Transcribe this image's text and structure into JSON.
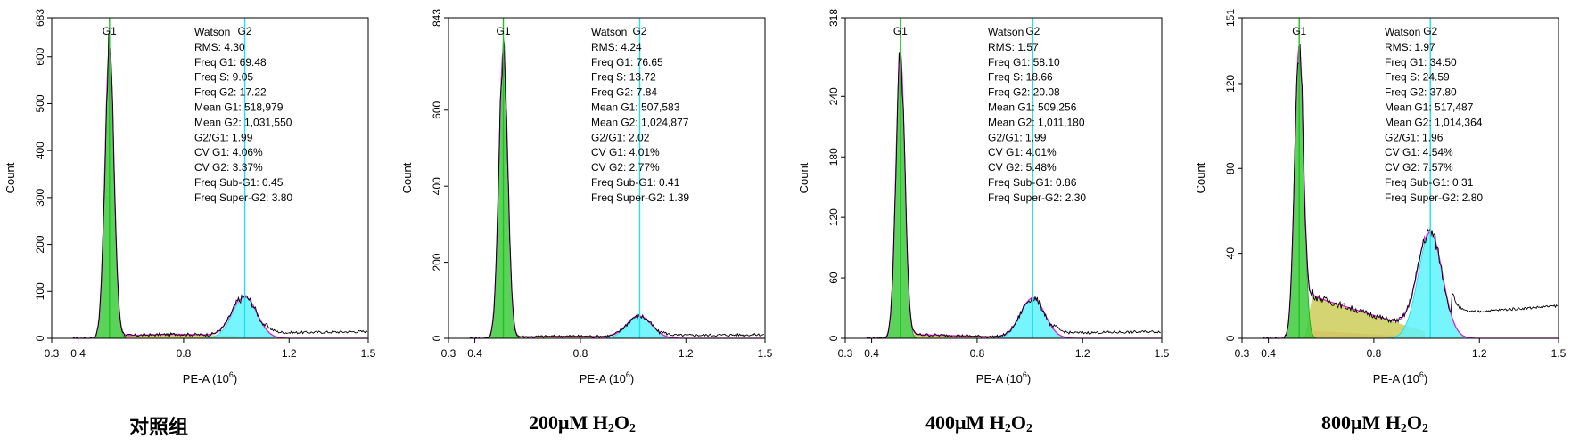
{
  "colors": {
    "g1_fill": "#3ccd3c",
    "g1_line": "#26a626",
    "g2_fill": "#5ff3fc",
    "g2_line": "#2ed6e8",
    "s_fill": "#cccc59",
    "sub_fill": "#f08a8a",
    "model_line": "#e21ee2",
    "data_line": "#000000"
  },
  "shared": {
    "xlabel_main": "PE-A (10",
    "xlabel_exp": "6",
    "xlabel_close": ")",
    "ylabel": "Count",
    "xticks": [
      "0.3",
      "0.4",
      "0.8",
      "1.2",
      "1.5"
    ],
    "peak_label_g1": "G1",
    "peak_label_g2": "G2",
    "stats_title": "Watson"
  },
  "chart_data": [
    {
      "type": "area",
      "caption": "对照组",
      "ylim": [
        0,
        683
      ],
      "yticks": [
        0,
        100,
        200,
        300,
        400,
        500,
        600,
        683
      ],
      "xlim": [
        0.3,
        1.5
      ],
      "g1_mean": 0.519,
      "g2_mean": 1.032,
      "g1_peak": 620,
      "g2_peak": 88,
      "stats": [
        "RMS: 4.30",
        "Freq G1: 69.48",
        "Freq S: 9.05",
        "Freq G2: 17.22",
        "Mean G1: 518,979",
        "Mean G2: 1,031,550",
        "G2/G1: 1.99",
        "CV G1: 4.06%",
        "CV G2: 3.37%",
        "Freq Sub-G1: 0.45",
        "Freq Super-G2: 3.80"
      ]
    },
    {
      "type": "area",
      "caption": "200μM H₂O₂",
      "caption_main": "200μM H",
      "caption_sub1": "2",
      "caption_mid": "O",
      "caption_sub2": "2",
      "ylim": [
        0,
        843
      ],
      "yticks": [
        0,
        200,
        400,
        600,
        843
      ],
      "xlim": [
        0.3,
        1.5
      ],
      "g1_mean": 0.508,
      "g2_mean": 1.025,
      "g1_peak": 760,
      "g2_peak": 58,
      "stats": [
        "RMS: 4.24",
        "Freq G1: 76.65",
        "Freq S: 13.72",
        "Freq G2: 7.84",
        "Mean G1: 507,583",
        "Mean G2: 1,024,877",
        "G2/G1: 2.02",
        "CV G1: 4.01%",
        "CV G2: 2.77%",
        "Freq Sub-G1: 0.41",
        "Freq Super-G2: 1.39"
      ]
    },
    {
      "type": "area",
      "caption": "400μM H₂O₂",
      "caption_main": "400μM H",
      "caption_sub1": "2",
      "caption_mid": "O",
      "caption_sub2": "2",
      "ylim": [
        0,
        318
      ],
      "yticks": [
        0,
        60,
        120,
        180,
        240,
        318
      ],
      "xlim": [
        0.3,
        1.5
      ],
      "g1_mean": 0.509,
      "g2_mean": 1.011,
      "g1_peak": 282,
      "g2_peak": 40,
      "stats": [
        "RMS: 1.57",
        "Freq G1: 58.10",
        "Freq S: 18.66",
        "Freq G2: 20.08",
        "Mean G1: 509,256",
        "Mean G2: 1,011,180",
        "G2/G1: 1.99",
        "CV G1: 4.01%",
        "CV G2: 5.48%",
        "Freq Sub-G1: 0.86",
        "Freq Super-G2: 2.30"
      ]
    },
    {
      "type": "area",
      "caption": "800μM H₂O₂",
      "caption_main": "800μM H",
      "caption_sub1": "2",
      "caption_mid": "O",
      "caption_sub2": "2",
      "ylim": [
        0,
        151
      ],
      "yticks": [
        0,
        40,
        80,
        120,
        151
      ],
      "xlim": [
        0.3,
        1.5
      ],
      "g1_mean": 0.517,
      "g2_mean": 1.014,
      "g1_peak": 138,
      "g2_peak": 50,
      "stats": [
        "RMS: 1.97",
        "Freq G1: 34.50",
        "Freq S: 24.59",
        "Freq G2: 37.80",
        "Mean G1: 517,487",
        "Mean G2: 1,014,364",
        "G2/G1: 1.96",
        "CV G1: 4.54%",
        "CV G2: 7.57%",
        "Freq Sub-G1: 0.31",
        "Freq Super-G2: 2.80"
      ]
    }
  ]
}
